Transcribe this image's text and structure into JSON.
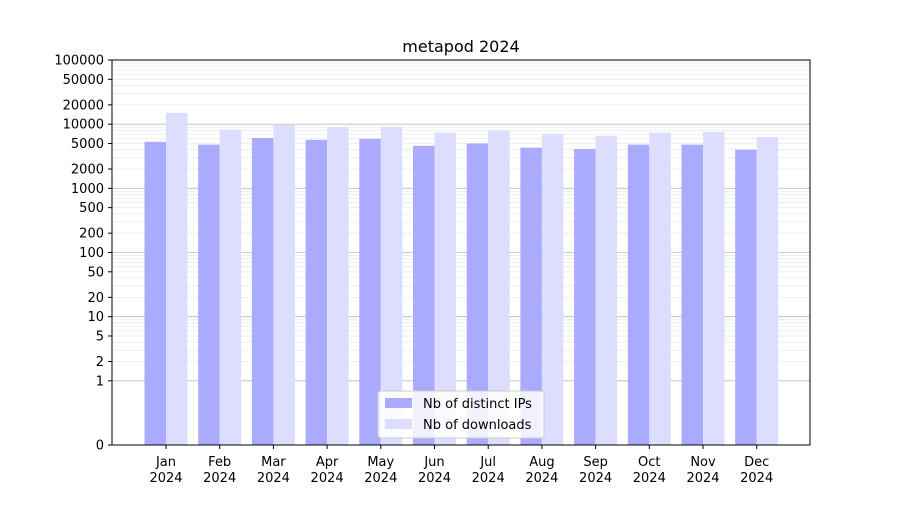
{
  "chart_data": {
    "type": "bar",
    "title": "metapod 2024",
    "xlabel": "",
    "ylabel": "",
    "y_scale": "symlog",
    "ylim": [
      0,
      100000
    ],
    "grid": true,
    "legend_position": "lower-center",
    "categories": [
      "Jan\n2024",
      "Feb\n2024",
      "Mar\n2024",
      "Apr\n2024",
      "May\n2024",
      "Jun\n2024",
      "Jul\n2024",
      "Aug\n2024",
      "Sep\n2024",
      "Oct\n2024",
      "Nov\n2024",
      "Dec\n2024"
    ],
    "y_ticks": [
      0,
      1,
      2,
      5,
      10,
      20,
      50,
      100,
      200,
      500,
      1000,
      2000,
      5000,
      10000,
      20000,
      50000,
      100000
    ],
    "y_tick_labels": [
      "0",
      "1",
      "2",
      "5",
      "10",
      "20",
      "50",
      "100",
      "200",
      "500",
      "1000",
      "2000",
      "5000",
      "10000",
      "20000",
      "50000",
      "100000"
    ],
    "series": [
      {
        "name": "Nb of distinct IPs",
        "color": "#aaaaff",
        "values": [
          5300,
          4800,
          6100,
          5700,
          5900,
          4600,
          5000,
          4300,
          4100,
          4800,
          4800,
          4000
        ]
      },
      {
        "name": "Nb of downloads",
        "color": "#ddddff",
        "values": [
          15000,
          8200,
          9700,
          8900,
          9100,
          7400,
          7900,
          7000,
          6600,
          7400,
          7600,
          6300
        ]
      }
    ]
  }
}
